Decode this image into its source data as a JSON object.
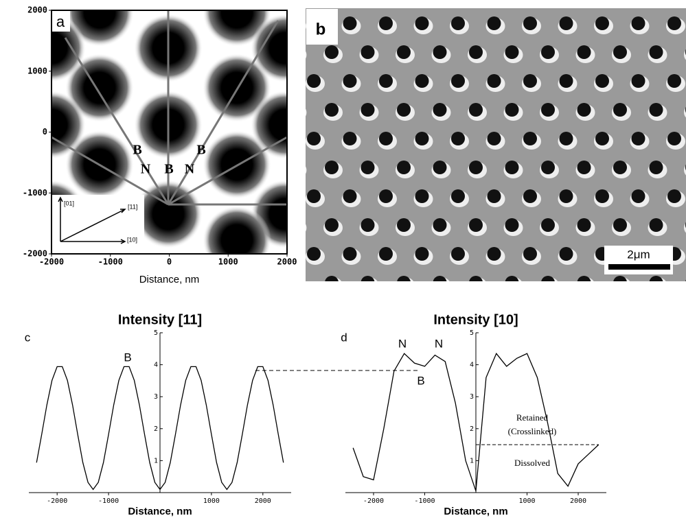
{
  "chart_data": [
    {
      "type": "image",
      "label": "a",
      "xlabel": "Distance, nm",
      "xlim": [
        -2000,
        2000
      ],
      "xticks": [
        -2000,
        -1000,
        0,
        1000,
        2000
      ],
      "ylim": [
        -2000,
        2000
      ],
      "yticks": [
        -2000,
        -1000,
        0,
        1000,
        2000
      ],
      "annotations": [
        "[01]",
        "[11]",
        "[10]",
        "B",
        "B",
        "N",
        "B",
        "N"
      ]
    },
    {
      "type": "photo",
      "label": "b",
      "scale_bar": "2μm"
    },
    {
      "type": "line",
      "label": "c",
      "title": "Intensity [11]",
      "xlabel": "Distance, nm",
      "xlim": [
        -2550,
        2550
      ],
      "xticks": [
        -2000,
        -1000,
        1000,
        2000
      ],
      "ylim": [
        0,
        5
      ],
      "yticks": [
        1,
        2,
        3,
        4,
        5
      ],
      "x": [
        -2400,
        -2300,
        -2200,
        -2100,
        -2000,
        -1900,
        -1800,
        -1700,
        -1600,
        -1500,
        -1400,
        -1300,
        -1200,
        -1100,
        -1000,
        -900,
        -800,
        -700,
        -600,
        -500,
        -400,
        -300,
        -200,
        -100,
        0,
        100,
        200,
        300,
        400,
        500,
        600,
        700,
        800,
        900,
        1000,
        1100,
        1200,
        1300,
        1400,
        1500,
        1600,
        1700,
        1800,
        1900,
        2000,
        2100,
        2200,
        2300,
        2400
      ],
      "values": [
        0.94,
        1.82,
        2.74,
        3.51,
        3.94,
        3.94,
        3.51,
        2.74,
        1.82,
        0.94,
        0.32,
        0.1,
        0.32,
        0.94,
        1.82,
        2.74,
        3.51,
        3.94,
        3.94,
        3.51,
        2.74,
        1.82,
        0.94,
        0.32,
        0.1,
        0.32,
        0.94,
        1.82,
        2.74,
        3.51,
        3.94,
        3.94,
        3.51,
        2.74,
        1.82,
        0.94,
        0.32,
        0.1,
        0.32,
        0.94,
        1.82,
        2.74,
        3.51,
        3.94,
        3.94,
        3.51,
        2.74,
        1.82,
        0.94
      ],
      "annotations": [
        "B"
      ]
    },
    {
      "type": "line",
      "label": "d",
      "title": "Intensity [10]",
      "xlabel": "Distance, nm",
      "xlim": [
        -2550,
        2550
      ],
      "xticks": [
        -2000,
        -1000,
        1000,
        2000
      ],
      "ylim": [
        0,
        5
      ],
      "yticks": [
        1,
        2,
        3,
        4,
        5
      ],
      "x": [
        -2400,
        -2200,
        -2000,
        -1800,
        -1600,
        -1400,
        -1200,
        -1000,
        -800,
        -600,
        -400,
        -200,
        0,
        200,
        400,
        600,
        800,
        1000,
        1200,
        1400,
        1600,
        1800,
        2000,
        2200,
        2400
      ],
      "values": [
        1.4,
        0.5,
        0.4,
        2.0,
        3.8,
        4.35,
        4.05,
        3.95,
        4.3,
        4.1,
        2.8,
        1.0,
        0.05,
        3.6,
        4.35,
        3.95,
        4.2,
        4.35,
        3.6,
        2.2,
        0.6,
        0.2,
        0.9,
        1.2,
        1.5
      ],
      "threshold": 1.5,
      "annotations": [
        "N",
        "N",
        "B",
        "Retained",
        "(Crosslinked)",
        "Dissolved"
      ]
    }
  ]
}
